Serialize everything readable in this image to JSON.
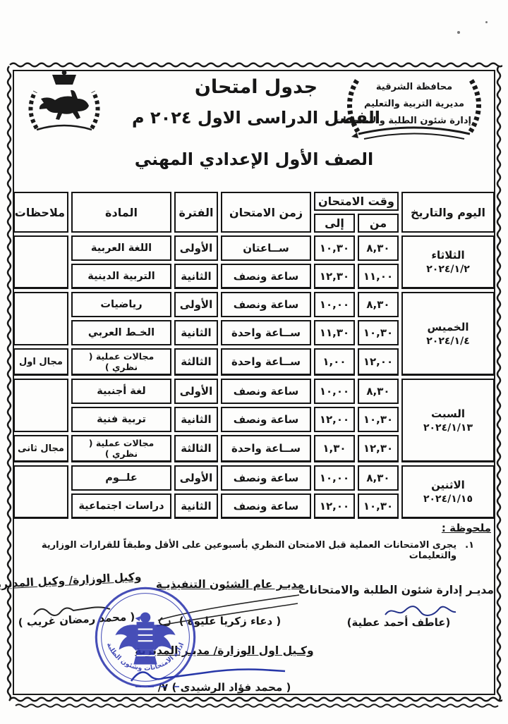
{
  "header": {
    "department": {
      "line1": "محافظة الشرقية",
      "line2": "مديرية التربية والتعليم",
      "line3": "إدارة شئون الطلبة والامتحانات"
    },
    "title1": "جدول امتحان",
    "title2": "الفصل الدراسى الاول ٢٠٢٤ م",
    "grade": "الصف الأول الإعدادي المهني"
  },
  "table": {
    "headers": {
      "day": "اليوم والتاريخ",
      "time": "وقت الامتحان",
      "from": "من",
      "to": "إلى",
      "duration": "زمن الامتحان",
      "period": "الفترة",
      "subject": "المادة",
      "notes": "ملاحظات"
    },
    "days": [
      {
        "name": "الثلاثاء",
        "date": "٢٠٢٤/١/٢"
      },
      {
        "name": "الخميس",
        "date": "٢٠٢٤/١/٤"
      },
      {
        "name": "السبت",
        "date": "٢٠٢٤/١/١٣"
      },
      {
        "name": "الاثنين",
        "date": "٢٠٢٤/١/١٥"
      }
    ],
    "rows": [
      {
        "from": "٨,٣٠",
        "to": "١٠,٣٠",
        "duration": "ســاعتان",
        "period": "الأولى",
        "subject": "اللغة العربية",
        "note": ""
      },
      {
        "from": "١١,٠٠",
        "to": "١٢,٣٠",
        "duration": "ساعة ونصف",
        "period": "الثانية",
        "subject": "التربية الدينية",
        "note": ""
      },
      {
        "from": "٨,٣٠",
        "to": "١٠,٠٠",
        "duration": "ساعة ونصف",
        "period": "الأولى",
        "subject": "رياضيات",
        "note": ""
      },
      {
        "from": "١٠,٣٠",
        "to": "١١,٣٠",
        "duration": "ســاعة واحدة",
        "period": "الثانية",
        "subject": "الخـط العربي",
        "note": ""
      },
      {
        "from": "١٢,٠٠",
        "to": "١,٠٠",
        "duration": "ســاعة واحدة",
        "period": "الثالثة",
        "subject": "مجالات عملية ( نظري )",
        "note": "مجال اول"
      },
      {
        "from": "٨,٣٠",
        "to": "١٠,٠٠",
        "duration": "ساعة ونصف",
        "period": "الأولى",
        "subject": "لغة أجنبية",
        "note": ""
      },
      {
        "from": "١٠,٣٠",
        "to": "١٢,٠٠",
        "duration": "ساعة ونصف",
        "period": "الثانية",
        "subject": "تربية فنية",
        "note": ""
      },
      {
        "from": "١٢,٣٠",
        "to": "١,٣٠",
        "duration": "ســاعة واحدة",
        "period": "الثالثة",
        "subject": "مجالات عملية ( نظري )",
        "note": "مجال ثانى"
      },
      {
        "from": "٨,٣٠",
        "to": "١٠,٠٠",
        "duration": "ساعة ونصف",
        "period": "الأولى",
        "subject": "علــوم",
        "note": ""
      },
      {
        "from": "١٠,٣٠",
        "to": "١٢,٠٠",
        "duration": "ساعة ونصف",
        "period": "الثانية",
        "subject": "دراسات اجتماعية",
        "note": ""
      }
    ]
  },
  "note": {
    "label": "ملحوظة :",
    "number": "١.",
    "text": "يجرى الامتحانات العملية قبل الامتحان النظري بأسبوعين على الأقل وطبقاً للقرارات الوزارية والتعليمات"
  },
  "signatures": {
    "students_affairs": {
      "title": "مديـر إدارة شئون الطلبة والامتحانات",
      "name": "(عاطف أحمد عطية)"
    },
    "executive": {
      "title": "مديـر عام الشئون التنفيذيـة",
      "name": "( دعاء زكريا عليوة )"
    },
    "deputy": {
      "title": "وكيل الوزارة/ وكيل المديرية",
      "name": "( محمد رمضان غريب )"
    },
    "first_deputy": {
      "title": "وكـيل اول الوزارة/ مديـر المديرية",
      "name": "( محمد فؤاد الرشيدى ) ٧/"
    }
  },
  "stamp": {
    "ring_text": "ادارة الامتحانات وشئون الطلبة"
  },
  "icons": {
    "horse_emblem": "sharqia-horse-emblem",
    "laurel_wreath": "laurel-wreath-emblem",
    "eagle_stamp": "egypt-eagle-stamp"
  },
  "colors": {
    "ink": "#161616",
    "stamp_blue": "#2d36ae",
    "signature_blue": "#2737a8"
  }
}
